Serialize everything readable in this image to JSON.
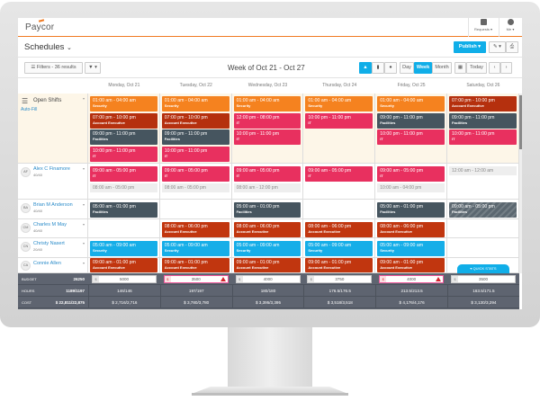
{
  "header": {
    "logo": "Paycor",
    "requests_label": "Requests ▾",
    "me_label": "Me ▾"
  },
  "page": {
    "title": "Schedules",
    "title_chevron": "⌄",
    "publish_label": "Publish ▾",
    "tools_label": "✎ ▾",
    "print_icon": "print-icon"
  },
  "toolbar": {
    "filters_label": "☰ Filters - 36 results",
    "funnel_label": "▼ ▾",
    "week_label": "Week of Oct 21 - Oct 27",
    "view_day": "Day",
    "view_week": "Week",
    "view_month": "Month",
    "today_label": "Today",
    "prev": "‹",
    "next": "›",
    "active_view": "Week"
  },
  "days": [
    "Monday, Oct 21",
    "Tuesday, Oct 22",
    "Wednesday, Oct 23",
    "Thursday, Oct 24",
    "Friday, Oct 25",
    "Saturday, Oct 26"
  ],
  "colors": {
    "security_orange": "#f5821f",
    "account_exec": "#c1360f",
    "facilities": "#46555f",
    "it": "#e8305f",
    "security_blue": "#16aee8",
    "accent": "#10aee8",
    "brand_line": "#f07a22"
  },
  "open_shifts": {
    "label": "Open Shifts",
    "autofill": "Auto-Fill",
    "cells": [
      [
        {
          "time": "01:00 am - 04:00 am",
          "role": "Security",
          "color": "#f5821f"
        },
        {
          "time": "07:00 pm - 10:00 pm",
          "role": "Account Executive",
          "color": "#b5300e"
        },
        {
          "time": "09:00 pm - 11:00 pm",
          "role": "Facilities",
          "color": "#46555f"
        },
        {
          "time": "10:00 pm - 11:00 pm",
          "role": "IT",
          "color": "#e8305f"
        }
      ],
      [
        {
          "time": "01:00 am - 04:00 am",
          "role": "Security",
          "color": "#f5821f"
        },
        {
          "time": "07:00 pm - 10:00 pm",
          "role": "Account Executive",
          "color": "#b5300e"
        },
        {
          "time": "09:00 pm - 11:00 pm",
          "role": "Facilities",
          "color": "#46555f"
        },
        {
          "time": "10:00 pm - 11:00 pm",
          "role": "IT",
          "color": "#e8305f"
        }
      ],
      [
        {
          "time": "01:00 am - 04:00 am",
          "role": "Security",
          "color": "#f5821f"
        },
        {
          "time": "12:00 pm - 08:00 pm",
          "role": "IT",
          "color": "#e8305f"
        },
        {
          "time": "10:00 pm - 11:00 pm",
          "role": "IT",
          "color": "#e8305f"
        }
      ],
      [
        {
          "time": "01:00 am - 04:00 am",
          "role": "Security",
          "color": "#f5821f"
        },
        {
          "time": "10:00 pm - 11:00 pm",
          "role": "IT",
          "color": "#e8305f"
        }
      ],
      [
        {
          "time": "01:00 am - 04:00 am",
          "role": "Security",
          "color": "#f5821f"
        },
        {
          "time": "09:00 pm - 11:00 pm",
          "role": "Facilities",
          "color": "#46555f"
        },
        {
          "time": "10:00 pm - 11:00 pm",
          "role": "IT",
          "color": "#e8305f"
        }
      ],
      [
        {
          "time": "07:00 pm - 10:00 pm",
          "role": "Account Executive",
          "color": "#b5300e"
        },
        {
          "time": "09:00 pm - 11:00 pm",
          "role": "Facilities",
          "color": "#46555f"
        },
        {
          "time": "10:00 pm - 11:00 pm",
          "role": "IT",
          "color": "#e8305f"
        }
      ]
    ]
  },
  "employees": [
    {
      "name": "Alex C Finamore",
      "initials": "AF",
      "hours": "40/40",
      "cells": [
        [
          {
            "time": "09:00 am - 05:00 pm",
            "role": "IT",
            "color": "#e8305f"
          },
          {
            "avail": "08:00 am - 05:00 pm"
          }
        ],
        [
          {
            "time": "09:00 am - 05:00 pm",
            "role": "IT",
            "color": "#e8305f"
          },
          {
            "avail": "08:00 am - 05:00 pm"
          }
        ],
        [
          {
            "time": "09:00 am - 05:00 pm",
            "role": "IT",
            "color": "#e8305f"
          },
          {
            "avail": "08:00 am - 12:00 pm"
          }
        ],
        [
          {
            "time": "09:00 am - 05:00 pm",
            "role": "IT",
            "color": "#e8305f"
          }
        ],
        [
          {
            "time": "09:00 am - 05:00 pm",
            "role": "IT",
            "color": "#e8305f"
          },
          {
            "avail": "10:00 am - 04:00 pm"
          }
        ],
        [
          {
            "avail": "12:00 am - 12:00 am"
          }
        ]
      ]
    },
    {
      "name": "Brian M Anderson",
      "initials": "BA",
      "hours": "40/40",
      "cells": [
        [
          {
            "time": "05:00 am - 01:00 pm",
            "role": "Facilities",
            "color": "#46555f"
          }
        ],
        [],
        [
          {
            "time": "05:00 am - 01:00 pm",
            "role": "Facilities",
            "color": "#46555f"
          }
        ],
        [],
        [
          {
            "time": "05:00 am - 01:00 pm",
            "role": "Facilities",
            "color": "#46555f"
          }
        ],
        [
          {
            "time": "09:00 am - 05:00 pm",
            "role": "Facilities",
            "color": "#5b6770",
            "hatched": true
          }
        ]
      ]
    },
    {
      "name": "Charles M May",
      "initials": "CM",
      "hours": "40/40",
      "cells": [
        [],
        [
          {
            "time": "08:00 am - 06:00 pm",
            "role": "Account Executive",
            "color": "#c1360f"
          }
        ],
        [
          {
            "time": "08:00 am - 06:00 pm",
            "role": "Account Executive",
            "color": "#c1360f"
          }
        ],
        [
          {
            "time": "08:00 am - 06:00 pm",
            "role": "Account Executive",
            "color": "#c1360f"
          }
        ],
        [
          {
            "time": "08:00 am - 06:00 pm",
            "role": "Account Executive",
            "color": "#c1360f"
          }
        ],
        []
      ]
    },
    {
      "name": "Christy Nasert",
      "initials": "CN",
      "hours": "20/40",
      "cells": [
        [
          {
            "time": "05:00 am - 09:00 am",
            "role": "Security",
            "color": "#16aee8"
          }
        ],
        [
          {
            "time": "05:00 am - 09:00 am",
            "role": "Security",
            "color": "#16aee8"
          }
        ],
        [
          {
            "time": "05:00 am - 09:00 am",
            "role": "Security",
            "color": "#16aee8"
          }
        ],
        [
          {
            "time": "05:00 am - 09:00 am",
            "role": "Security",
            "color": "#16aee8"
          }
        ],
        [
          {
            "time": "05:00 am - 09:00 am",
            "role": "Security",
            "color": "#16aee8"
          }
        ],
        []
      ]
    },
    {
      "name": "Connie Allen",
      "initials": "CA",
      "hours": "",
      "cells": [
        [
          {
            "time": "09:00 am - 01:00 pm",
            "role": "Account Executive",
            "color": "#c1360f"
          }
        ],
        [
          {
            "time": "09:00 am - 01:00 pm",
            "role": "Account Executive",
            "color": "#c1360f"
          }
        ],
        [
          {
            "time": "09:00 am - 01:00 pm",
            "role": "Account Executive",
            "color": "#c1360f"
          }
        ],
        [
          {
            "time": "09:00 am - 01:00 pm",
            "role": "Account Executive",
            "color": "#c1360f"
          }
        ],
        [
          {
            "time": "09:00 am - 01:00 pm",
            "role": "Account Executive",
            "color": "#c1360f"
          }
        ],
        []
      ]
    }
  ],
  "quick_stats": "▾ QUICK STATS",
  "stats": {
    "budget": {
      "label": "BUDGET",
      "total": "26250",
      "values": [
        "5000",
        "3500",
        "4000",
        "3750",
        "4000",
        "3500"
      ],
      "warnings": [
        false,
        true,
        false,
        false,
        true,
        false
      ],
      "currency": "$"
    },
    "hours": {
      "label": "HOURS",
      "total": "1189/1197",
      "values": [
        "146/146",
        "197/197",
        "180/180",
        "176.5/176.5",
        "213.5/213.5",
        "163.5/171.5"
      ]
    },
    "cost": {
      "label": "COST",
      "total": "$ 22,811/22,875",
      "values": [
        "$ 2,716/2,716",
        "$ 3,780/3,780",
        "$ 3,395/3,395",
        "$ 3,518/3,518",
        "$ 4,176/4,176",
        "$ 3,130/3,294"
      ]
    }
  }
}
